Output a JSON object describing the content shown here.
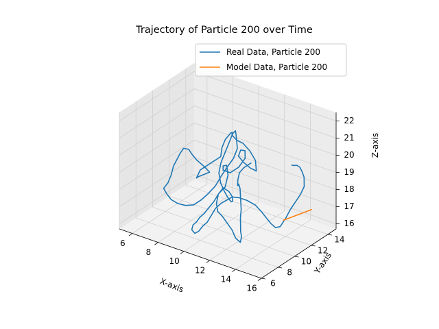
{
  "chart_data": {
    "type": "line",
    "projection": "3d",
    "title": "Trajectory of Particle 200 over Time",
    "xlabel": "X-axis",
    "ylabel": "Y-axis",
    "zlabel": "Z-axis",
    "xlim": [
      5,
      16
    ],
    "ylim": [
      6,
      15
    ],
    "zlim": [
      15.7,
      22.5
    ],
    "xticks": [
      "6",
      "8",
      "10",
      "12",
      "14",
      "16"
    ],
    "yticks": [
      "6",
      "8",
      "10",
      "12",
      "14"
    ],
    "zticks": [
      "16",
      "17",
      "18",
      "19",
      "20",
      "21",
      "22"
    ],
    "grid": true,
    "legend_position": "top-right",
    "series": [
      {
        "name": "Real Data, Particle 200",
        "color": "#1f77b4",
        "points": [
          [
            10.3,
            13.6,
            18.5
          ],
          [
            9.9,
            13.4,
            18.2
          ],
          [
            9.8,
            13.0,
            18.0
          ],
          [
            10.0,
            12.5,
            17.8
          ],
          [
            10.3,
            12.0,
            17.7
          ],
          [
            10.6,
            11.6,
            17.9
          ],
          [
            10.9,
            11.2,
            18.2
          ],
          [
            11.2,
            10.9,
            18.1
          ],
          [
            11.5,
            10.5,
            17.7
          ],
          [
            11.8,
            10.1,
            17.3
          ],
          [
            12.0,
            9.7,
            17.0
          ],
          [
            12.2,
            9.4,
            16.7
          ],
          [
            12.4,
            9.1,
            16.5
          ],
          [
            12.6,
            8.9,
            16.3
          ],
          [
            12.7,
            8.6,
            16.1
          ],
          [
            12.4,
            8.5,
            16.3
          ],
          [
            12.0,
            8.7,
            16.6
          ],
          [
            11.5,
            8.9,
            16.8
          ],
          [
            11.0,
            9.1,
            17.0
          ],
          [
            10.5,
            9.3,
            17.1
          ],
          [
            10.2,
            9.6,
            17.4
          ],
          [
            10.1,
            10.0,
            17.8
          ],
          [
            10.3,
            10.5,
            18.1
          ],
          [
            10.2,
            11.0,
            18.6
          ],
          [
            9.9,
            11.3,
            19.0
          ],
          [
            9.5,
            11.5,
            18.8
          ],
          [
            9.3,
            11.8,
            18.4
          ],
          [
            9.6,
            12.2,
            18.2
          ],
          [
            10.0,
            12.6,
            18.5
          ],
          [
            10.3,
            12.9,
            19.0
          ],
          [
            10.1,
            13.2,
            19.3
          ],
          [
            9.7,
            13.3,
            19.2
          ],
          [
            9.4,
            13.5,
            18.7
          ],
          [
            9.6,
            13.8,
            18.3
          ],
          [
            10.0,
            14.0,
            18.0
          ],
          [
            10.4,
            14.1,
            17.9
          ],
          [
            10.2,
            14.3,
            18.4
          ],
          [
            9.7,
            14.4,
            18.8
          ],
          [
            9.3,
            14.2,
            19.2
          ],
          [
            9.0,
            13.9,
            19.4
          ],
          [
            8.9,
            13.5,
            19.8
          ],
          [
            9.1,
            13.2,
            20.1
          ],
          [
            9.2,
            12.9,
            20.2
          ],
          [
            8.9,
            12.7,
            19.8
          ],
          [
            8.7,
            12.6,
            19.3
          ],
          [
            8.8,
            12.3,
            18.9
          ],
          [
            8.4,
            12.0,
            18.6
          ],
          [
            8.0,
            11.9,
            18.3
          ],
          [
            7.6,
            11.7,
            18.0
          ],
          [
            7.5,
            11.4,
            17.6
          ],
          [
            7.9,
            11.1,
            17.9
          ],
          [
            8.4,
            10.9,
            18.2
          ],
          [
            8.9,
            10.8,
            18.5
          ],
          [
            8.6,
            10.5,
            18.9
          ],
          [
            8.2,
            10.3,
            19.2
          ],
          [
            7.9,
            10.2,
            19.5
          ],
          [
            7.8,
            10.0,
            19.8
          ],
          [
            7.6,
            9.7,
            19.9
          ],
          [
            7.4,
            9.6,
            19.6
          ],
          [
            7.2,
            9.5,
            19.2
          ],
          [
            7.0,
            9.4,
            18.8
          ],
          [
            6.9,
            9.3,
            18.3
          ],
          [
            6.7,
            9.2,
            17.8
          ],
          [
            6.5,
            9.0,
            17.5
          ],
          [
            6.8,
            8.9,
            17.3
          ],
          [
            7.2,
            8.8,
            17.1
          ],
          [
            7.6,
            9.0,
            16.9
          ],
          [
            8.0,
            9.3,
            16.8
          ],
          [
            8.5,
            9.5,
            16.9
          ],
          [
            8.9,
            9.8,
            17.2
          ],
          [
            9.3,
            10.0,
            17.6
          ],
          [
            9.6,
            10.4,
            18.0
          ],
          [
            9.9,
            10.7,
            18.6
          ],
          [
            10.2,
            10.9,
            19.1
          ],
          [
            10.5,
            11.2,
            19.6
          ],
          [
            10.6,
            11.5,
            20.1
          ],
          [
            10.4,
            11.7,
            20.6
          ],
          [
            10.2,
            11.9,
            20.9
          ],
          [
            10.0,
            11.9,
            20.7
          ],
          [
            9.8,
            11.8,
            20.2
          ],
          [
            9.6,
            11.6,
            19.6
          ],
          [
            9.4,
            11.4,
            19.0
          ],
          [
            9.3,
            11.3,
            18.4
          ],
          [
            9.5,
            11.2,
            17.9
          ],
          [
            9.9,
            11.0,
            17.6
          ],
          [
            10.3,
            10.8,
            17.4
          ],
          [
            10.7,
            10.6,
            17.3
          ],
          [
            11.0,
            10.3,
            17.5
          ],
          [
            11.2,
            10.0,
            17.9
          ],
          [
            11.1,
            9.7,
            18.3
          ],
          [
            10.8,
            9.5,
            18.5
          ],
          [
            10.5,
            9.4,
            18.1
          ],
          [
            10.2,
            9.3,
            17.6
          ],
          [
            9.9,
            9.1,
            17.2
          ],
          [
            9.7,
            8.9,
            16.9
          ],
          [
            9.5,
            8.7,
            16.7
          ],
          [
            9.3,
            8.6,
            16.4
          ],
          [
            9.1,
            8.5,
            16.2
          ],
          [
            9.0,
            8.5,
            15.9
          ],
          [
            9.3,
            8.4,
            15.8
          ],
          [
            9.6,
            8.4,
            16.0
          ],
          [
            9.8,
            8.6,
            16.3
          ],
          [
            10.0,
            8.8,
            16.5
          ],
          [
            10.2,
            9.0,
            16.9
          ],
          [
            10.4,
            9.2,
            17.3
          ],
          [
            10.7,
            9.4,
            17.6
          ],
          [
            11.0,
            9.6,
            17.8
          ],
          [
            11.3,
            9.8,
            18.0
          ],
          [
            11.7,
            10.0,
            18.0
          ],
          [
            12.2,
            10.2,
            17.9
          ],
          [
            12.7,
            10.4,
            17.7
          ],
          [
            13.1,
            10.5,
            17.4
          ],
          [
            13.4,
            10.6,
            17.1
          ],
          [
            13.7,
            10.7,
            16.8
          ],
          [
            14.0,
            10.8,
            16.6
          ],
          [
            14.3,
            10.9,
            16.7
          ],
          [
            14.5,
            11.2,
            17.1
          ],
          [
            14.7,
            11.5,
            17.6
          ],
          [
            14.9,
            11.8,
            18.0
          ],
          [
            15.1,
            12.1,
            18.4
          ],
          [
            15.2,
            12.4,
            18.8
          ],
          [
            15.0,
            12.7,
            19.2
          ],
          [
            14.7,
            12.9,
            19.4
          ],
          [
            14.4,
            13.1,
            19.5
          ],
          [
            14.1,
            13.2,
            19.5
          ],
          [
            13.9,
            13.3,
            19.4
          ],
          [
            13.6,
            13.4,
            19.3
          ]
        ]
      },
      {
        "name": "Model Data, Particle 200",
        "color": "#ff7f0e",
        "points": [
          [
            14.5,
            11.0,
            17.1
          ],
          [
            15.2,
            11.6,
            17.4
          ],
          [
            15.9,
            12.2,
            17.7
          ]
        ]
      }
    ]
  }
}
